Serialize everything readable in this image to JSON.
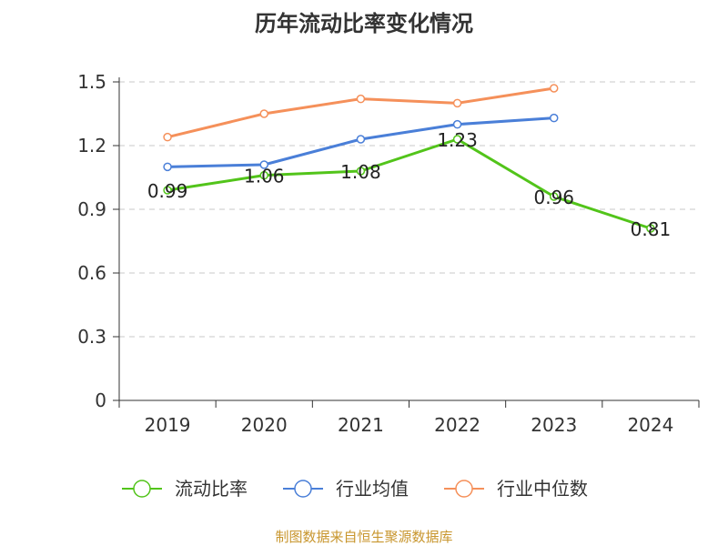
{
  "chart_data": {
    "type": "line",
    "title": "历年流动比率变化情况",
    "categories": [
      "2019",
      "2020",
      "2021",
      "2022",
      "2023",
      "2024"
    ],
    "ylim": [
      0,
      1.5
    ],
    "yticks": [
      "0",
      "0.3",
      "0.6",
      "0.9",
      "1.2",
      "1.5"
    ],
    "grid": true,
    "legend_position": "bottom",
    "series": [
      {
        "name": "流动比率",
        "color": "#52c41a",
        "values": [
          0.99,
          1.06,
          1.08,
          1.23,
          0.96,
          0.81
        ],
        "labels": [
          "0.99",
          "1.06",
          "1.08",
          "1.23",
          "0.96",
          "0.81"
        ],
        "show_labels": true
      },
      {
        "name": "行业均值",
        "color": "#4a7fd8",
        "values": [
          1.1,
          1.11,
          1.23,
          1.3,
          1.33,
          null
        ],
        "show_labels": false
      },
      {
        "name": "行业中位数",
        "color": "#f5905a",
        "values": [
          1.24,
          1.35,
          1.42,
          1.4,
          1.47,
          null
        ],
        "show_labels": false
      }
    ]
  },
  "source_note": "制图数据来自恒生聚源数据库"
}
